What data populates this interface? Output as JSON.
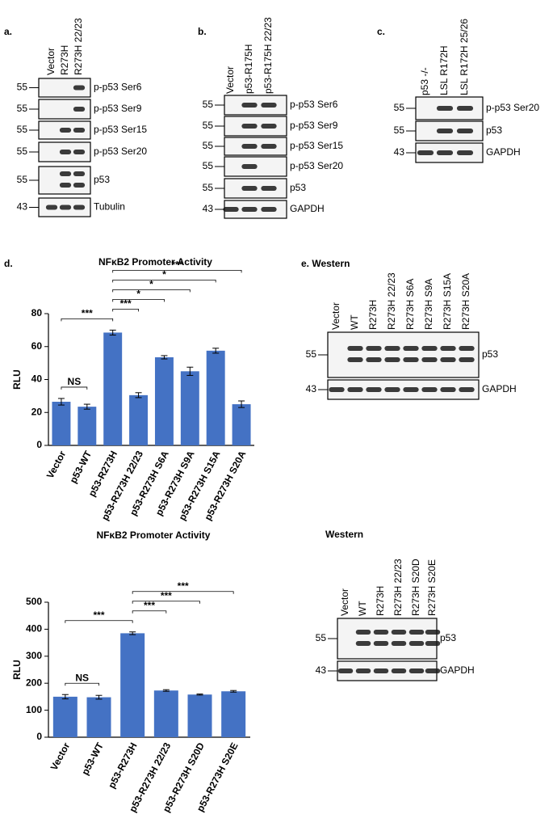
{
  "blots": [
    {
      "label": "a.",
      "lanes": [
        "Vector",
        "R273H",
        "R273H 22/23"
      ],
      "rows": [
        {
          "marker": 55,
          "protein": "p-p53 Ser6"
        },
        {
          "marker": 55,
          "protein": "p-p53 Ser9"
        },
        {
          "marker": 55,
          "protein": "p-p53 Ser15"
        },
        {
          "marker": 55,
          "protein": "p-p53 Ser20"
        },
        {
          "marker": 55,
          "protein": "p53"
        },
        {
          "marker": 43,
          "protein": "Tubulin"
        }
      ]
    },
    {
      "label": "b.",
      "lanes": [
        "Vector",
        "p53-R175H",
        "p53-R175H 22/23"
      ],
      "rows": [
        {
          "marker": 55,
          "protein": "p-p53 Ser6"
        },
        {
          "marker": 55,
          "protein": "p-p53 Ser9"
        },
        {
          "marker": 55,
          "protein": "p-p53 Ser15"
        },
        {
          "marker": 55,
          "protein": "p-p53 Ser20"
        },
        {
          "marker": 55,
          "protein": "p53"
        },
        {
          "marker": 43,
          "protein": "GAPDH"
        }
      ]
    },
    {
      "label": "c.",
      "lanes": [
        "p53 -/-",
        "LSL R172H",
        "LSL R172H 25/26"
      ],
      "rows": [
        {
          "marker": 55,
          "protein": "p-p53 Ser20"
        },
        {
          "marker": 55,
          "protein": "p53"
        },
        {
          "marker": 43,
          "protein": "GAPDH"
        }
      ]
    },
    {
      "label": "e. Western",
      "lanes": [
        "Vector",
        "WT",
        "R273H",
        "R273H 22/23",
        "R273H S6A",
        "R273H S9A",
        "R273H S15A",
        "R273H S20A"
      ],
      "rows": [
        {
          "marker": 55,
          "protein": "p53"
        },
        {
          "marker": 43,
          "protein": "GAPDH"
        }
      ]
    },
    {
      "label": "Western",
      "lanes": [
        "Vector",
        "WT",
        "R273H",
        "R273H 22/23",
        "R273H S20D",
        "R273H S20E"
      ],
      "rows": [
        {
          "marker": 55,
          "protein": "p53"
        },
        {
          "marker": 43,
          "protein": "GAPDH"
        }
      ]
    }
  ],
  "panel_label": "d.",
  "chart_data": [
    {
      "type": "bar",
      "title": "NFκB2 Promoter Activity",
      "y_label": "RLU",
      "color": "#4472c4",
      "categories": [
        "Vector",
        "p53-WT",
        "p53-R273H",
        "p53-R273H 22/23",
        "p53-R273H S6A",
        "p53-R273H S9A",
        "p53-R273H S15A",
        "p53-R273H S20A"
      ],
      "values": [
        26.5,
        23.5,
        68.5,
        30.5,
        53.5,
        45,
        57.5,
        25
      ],
      "errors": [
        2,
        1.5,
        1.5,
        1.5,
        1,
        2.5,
        1.5,
        2
      ],
      "ylim": [
        0,
        80
      ],
      "yticks": [
        0,
        20,
        40,
        60,
        80
      ],
      "comparisons": [
        {
          "from": "Vector",
          "to": "p53-WT",
          "label": "NS"
        },
        {
          "from": "Vector",
          "to": "p53-R273H",
          "label": "***"
        },
        {
          "from": "p53-R273H",
          "to": "p53-R273H 22/23",
          "label": "***"
        },
        {
          "from": "p53-R273H",
          "to": "p53-R273H S6A",
          "label": "*"
        },
        {
          "from": "p53-R273H",
          "to": "p53-R273H S9A",
          "label": "*"
        },
        {
          "from": "p53-R273H",
          "to": "p53-R273H S15A",
          "label": "*"
        },
        {
          "from": "p53-R273H",
          "to": "p53-R273H S20A",
          "label": "***"
        }
      ]
    },
    {
      "type": "bar",
      "title": "NFκB2 Promoter Activity",
      "y_label": "RLU",
      "color": "#4472c4",
      "categories": [
        "Vector",
        "p53-WT",
        "p53-R273H",
        "p53-R273H 22/23",
        "p53-R273H S20D",
        "p53-R273H S20E"
      ],
      "values": [
        150,
        148,
        385,
        173,
        158,
        170
      ],
      "errors": [
        8,
        7,
        5,
        3,
        2,
        3
      ],
      "ylim": [
        0,
        500
      ],
      "yticks": [
        0,
        100,
        200,
        300,
        400,
        500
      ],
      "comparisons": [
        {
          "from": "Vector",
          "to": "p53-WT",
          "label": "NS"
        },
        {
          "from": "Vector",
          "to": "p53-R273H",
          "label": "***"
        },
        {
          "from": "p53-R273H",
          "to": "p53-R273H 22/23",
          "label": "***"
        },
        {
          "from": "p53-R273H",
          "to": "p53-R273H S20D",
          "label": "***"
        },
        {
          "from": "p53-R273H",
          "to": "p53-R273H S20E",
          "label": "***"
        }
      ]
    }
  ]
}
